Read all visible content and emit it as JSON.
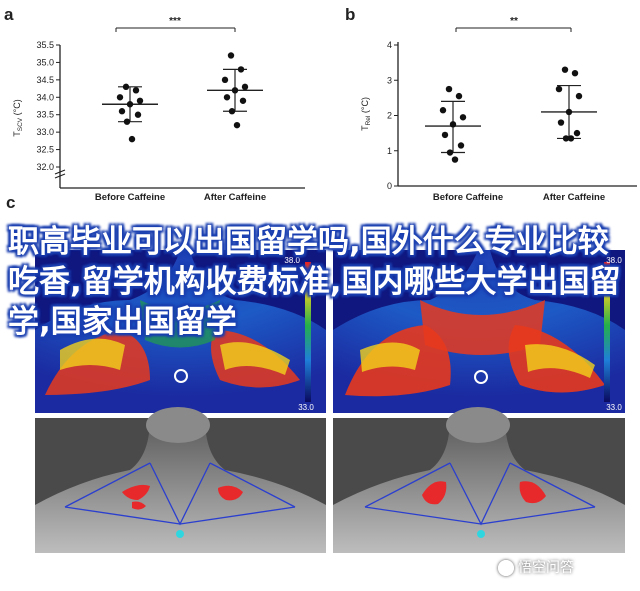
{
  "panels": {
    "a_letter": "a",
    "b_letter": "b",
    "c_letter": "c"
  },
  "chart_data": [
    {
      "type": "scatter",
      "panel": "a",
      "categories": [
        "Before Caffeine",
        "After Caffeine"
      ],
      "ylabel": "T_SCV (°C)",
      "ylim": [
        32.0,
        35.5
      ],
      "yticks": [
        "32.0",
        "32.5",
        "33.0",
        "33.5",
        "34.0",
        "34.5",
        "35.0",
        "35.5"
      ],
      "axis_break": true,
      "significance": "***",
      "series": [
        {
          "points": [
            34.3,
            34.2,
            34.0,
            33.9,
            33.8,
            33.6,
            33.5,
            33.3,
            32.8
          ],
          "mean": 33.8,
          "sd_low": 33.3,
          "sd_high": 34.3
        },
        {
          "points": [
            35.2,
            34.8,
            34.5,
            34.3,
            34.2,
            34.0,
            33.9,
            33.6,
            33.2
          ],
          "mean": 34.2,
          "sd_low": 33.6,
          "sd_high": 34.8
        }
      ]
    },
    {
      "type": "scatter",
      "panel": "b",
      "categories": [
        "Before Caffeine",
        "After Caffeine"
      ],
      "ylabel": "T_Rel (°C)",
      "ylim": [
        0,
        4
      ],
      "yticks": [
        "0",
        "1",
        "2",
        "3",
        "4"
      ],
      "significance": "**",
      "series": [
        {
          "points": [
            2.75,
            2.55,
            2.15,
            1.95,
            1.75,
            1.45,
            1.15,
            0.95,
            0.75
          ],
          "mean": 1.7,
          "sd_low": 0.95,
          "sd_high": 2.4
        },
        {
          "points": [
            3.3,
            3.2,
            2.75,
            2.55,
            2.1,
            1.8,
            1.5,
            1.35,
            1.35
          ],
          "mean": 2.1,
          "sd_low": 1.35,
          "sd_high": 2.85
        }
      ]
    }
  ],
  "thermal": {
    "scale_max_left": "38.0",
    "scale_min_left": "33.0",
    "scale_max_right": "38.0",
    "scale_min_right": "33.0"
  },
  "overlay_text": "职高毕业可以出国留学吗,国外什么专业比较吃香,留学机构收费标准,国内哪些大学出国留学,国家出国留学",
  "watermark": "悟空问答",
  "colors": {
    "axis": "#222222",
    "error_bar": "#222222",
    "point": "#111111",
    "overlay_outline": "#1a3fb0",
    "thermal_hot": "#e21f1f",
    "thermal_cold": "#1b2aa8",
    "triangle_line": "#2b3fcf",
    "marker_cyan": "#2fd6e0"
  }
}
